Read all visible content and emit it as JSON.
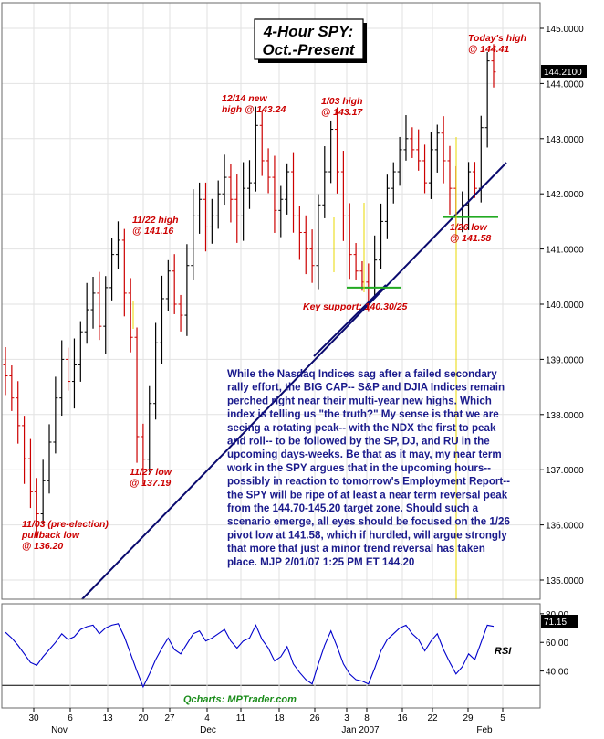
{
  "title_lines": [
    "4-Hour SPY:",
    "Oct.-Present"
  ],
  "credit": "Qcharts: MPTrader.com",
  "rsi_label": "RSI",
  "rsi_last_badge": "71.15",
  "last_price_badge": "144.2100",
  "commentary": [
    "While the Nasdaq Indices sag after a failed secondary",
    "rally effort, the BIG CAP-- S&P and DJIA Indices remain",
    "perched right near their multi-year new highs. Which",
    "index is telling us \"the truth?\" My sense is that we are",
    "seeing a rotating peak-- with the NDX the first to peak",
    "and roll-- to be followed by the SP, DJ, and RU in the",
    "upcoming days-weeks. Be that as it may, my near term",
    "work in the SPY argues that in the upcoming hours--",
    "possibly in reaction to tomorrow's Employment Report--",
    "the SPY will be ripe of at least a near term reversal peak",
    "from the 144.70-145.20 target zone. Should such a",
    "scenario emerge, all eyes should be focused on the 1/26",
    "pivot low at 141.58, which if hurdled, will argue strongly",
    "that more that just a minor trend reversal has taken",
    "place.  MJP  2/01/07 1:25 PM ET  144.20"
  ],
  "annotations": [
    {
      "key": "a1",
      "lines": [
        "11/03 (pre-election)",
        "pullback low",
        "@ 136.20"
      ]
    },
    {
      "key": "a2",
      "lines": [
        "11/22 high",
        "@ 141.16"
      ]
    },
    {
      "key": "a3",
      "lines": [
        "11/27 low",
        "@ 137.19"
      ]
    },
    {
      "key": "a4",
      "lines": [
        "12/14 new",
        "high @ 143.24"
      ]
    },
    {
      "key": "a5",
      "lines": [
        "1/03 high",
        "@ 143.17"
      ]
    },
    {
      "key": "a6",
      "lines": [
        "Key support: 140.30/25"
      ]
    },
    {
      "key": "a7",
      "lines": [
        "1/26 low",
        "@ 141.58"
      ]
    },
    {
      "key": "a8",
      "lines": [
        "Today's high",
        "@ 144.41"
      ]
    }
  ],
  "chart_data": [
    {
      "type": "candlestick",
      "title": "4-Hour SPY: Oct.-Present",
      "ylim": [
        134.6,
        145.6
      ],
      "y_ticks": [
        "145.0000",
        "144.0000",
        "143.0000",
        "142.0000",
        "141.0000",
        "140.0000",
        "139.0000",
        "138.0000",
        "137.0000",
        "136.0000",
        "135.0000"
      ],
      "x_ticks": [
        "30",
        "6",
        "13",
        "20",
        "27",
        "4",
        "11",
        "18",
        "26",
        "3",
        "8",
        "16",
        "22",
        "29",
        "5"
      ],
      "x_month_labels": [
        "Nov",
        "Dec",
        "Jan 2007",
        "Feb"
      ],
      "key_points": [
        {
          "date": "11/03",
          "label": "pre-election pullback low",
          "value": 136.2
        },
        {
          "date": "11/22",
          "label": "high",
          "value": 141.16
        },
        {
          "date": "11/27",
          "label": "low",
          "value": 137.19
        },
        {
          "date": "12/14",
          "label": "new high",
          "value": 143.24
        },
        {
          "date": "1/03",
          "label": "high",
          "value": 143.17
        },
        {
          "date": "1/26",
          "label": "low",
          "value": 141.58
        },
        {
          "date": "2/01",
          "label": "today's high",
          "value": 144.41
        }
      ],
      "key_support": "140.30/25",
      "last_price": 144.21,
      "trendline": {
        "from_date": "11/01",
        "from_value": 134.6,
        "to_date": "2/02",
        "to_value": 142.6
      },
      "closes_sampled": [
        138.7,
        138.3,
        137.8,
        137.2,
        136.6,
        136.2,
        136.8,
        137.5,
        138.3,
        139.0,
        138.6,
        138.9,
        139.5,
        139.9,
        140.2,
        139.6,
        140.3,
        140.9,
        141.16,
        140.2,
        139.4,
        137.6,
        137.19,
        138.2,
        139.3,
        140.1,
        140.6,
        140.0,
        139.8,
        140.7,
        141.6,
        141.9,
        141.4,
        141.6,
        142.0,
        142.3,
        141.9,
        141.6,
        142.1,
        142.2,
        143.24,
        142.6,
        142.3,
        141.7,
        141.9,
        142.4,
        141.6,
        141.3,
        141.0,
        140.7,
        141.8,
        142.4,
        143.17,
        142.4,
        141.6,
        140.9,
        140.6,
        140.4,
        140.3,
        140.8,
        141.5,
        142.1,
        142.4,
        142.8,
        143.0,
        142.8,
        142.6,
        142.2,
        142.8,
        143.1,
        142.6,
        142.1,
        141.58,
        141.8,
        142.4,
        142.1,
        143.2,
        144.41,
        144.21
      ]
    },
    {
      "type": "line",
      "name": "RSI",
      "ylim": [
        20,
        85
      ],
      "y_ticks": [
        "80.00",
        "60.00",
        "40.00"
      ],
      "reference_levels": [
        70,
        30
      ],
      "last_value": 71.15,
      "values": [
        67,
        63,
        58,
        52,
        46,
        44,
        50,
        55,
        60,
        66,
        62,
        64,
        69,
        71,
        72,
        66,
        70,
        72,
        73,
        64,
        52,
        40,
        29,
        38,
        48,
        56,
        63,
        55,
        52,
        59,
        66,
        68,
        61,
        63,
        66,
        69,
        61,
        56,
        61,
        63,
        72,
        62,
        56,
        47,
        50,
        57,
        45,
        39,
        34,
        31,
        45,
        58,
        68,
        57,
        45,
        38,
        34,
        33,
        31,
        42,
        54,
        62,
        66,
        70,
        72,
        66,
        62,
        54,
        61,
        66,
        55,
        46,
        38,
        43,
        52,
        48,
        60,
        72,
        71.15
      ]
    }
  ]
}
